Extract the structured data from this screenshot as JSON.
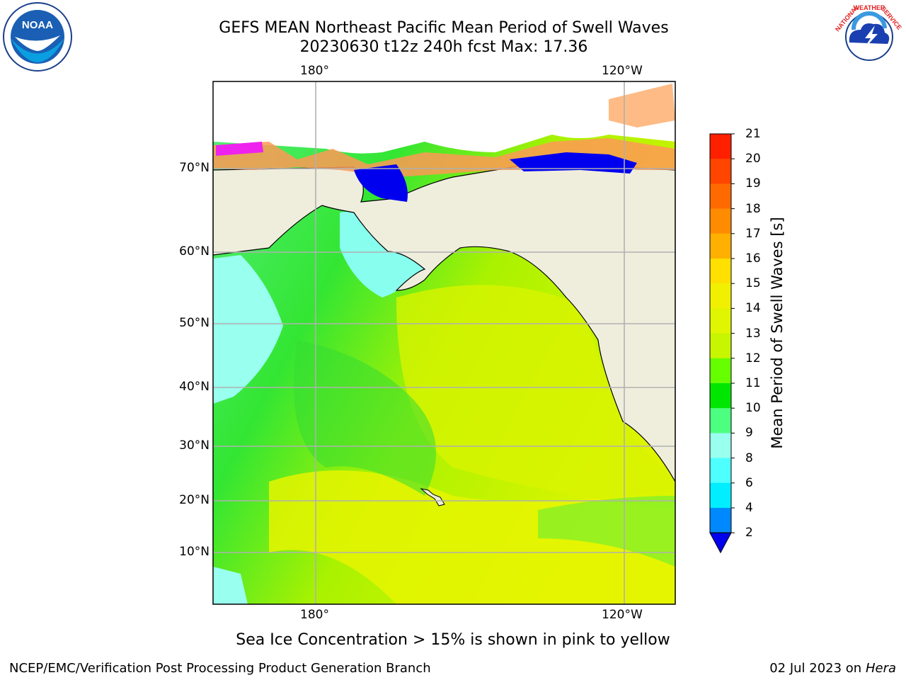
{
  "header": {
    "title_line1": "GEFS MEAN Northeast Pacific Mean Period of Swell Waves",
    "title_line2": "20230630 t12z 240h fcst   Max: 17.36"
  },
  "map": {
    "lon_labels_top": [
      "180°",
      "120°W"
    ],
    "lon_labels_bottom": [
      "180°",
      "120°W"
    ],
    "lat_labels": [
      "70°N",
      "60°N",
      "50°N",
      "40°N",
      "30°N",
      "20°N",
      "10°N"
    ]
  },
  "colorbar": {
    "title": "Mean Period of Swell Waves [s]",
    "ticks": [
      "21",
      "20",
      "19",
      "18",
      "17",
      "16",
      "15",
      "14",
      "13",
      "12",
      "11",
      "10",
      "9",
      "8",
      "6",
      "4",
      "2"
    ],
    "colors": [
      "#ff0000",
      "#ff2000",
      "#ff4500",
      "#ff6a00",
      "#ff8c00",
      "#ffb000",
      "#ffe000",
      "#f0f000",
      "#e0f500",
      "#c8f500",
      "#66ff00",
      "#00e600",
      "#4dff80",
      "#99ffee",
      "#4dffff",
      "#00eeff",
      "#0088ff"
    ],
    "extend_color": "#0000ee"
  },
  "logos": {
    "noaa_text": "NOAA",
    "nws_text": "NATIONAL WEATHER SERVICE"
  },
  "footer": {
    "note": "Sea Ice Concentration > 15% is shown in pink to yellow",
    "credit": "NCEP/EMC/Verification Post Processing Product Generation Branch",
    "date_prefix": "02 Jul 2023 on ",
    "date_host": "Hera"
  }
}
